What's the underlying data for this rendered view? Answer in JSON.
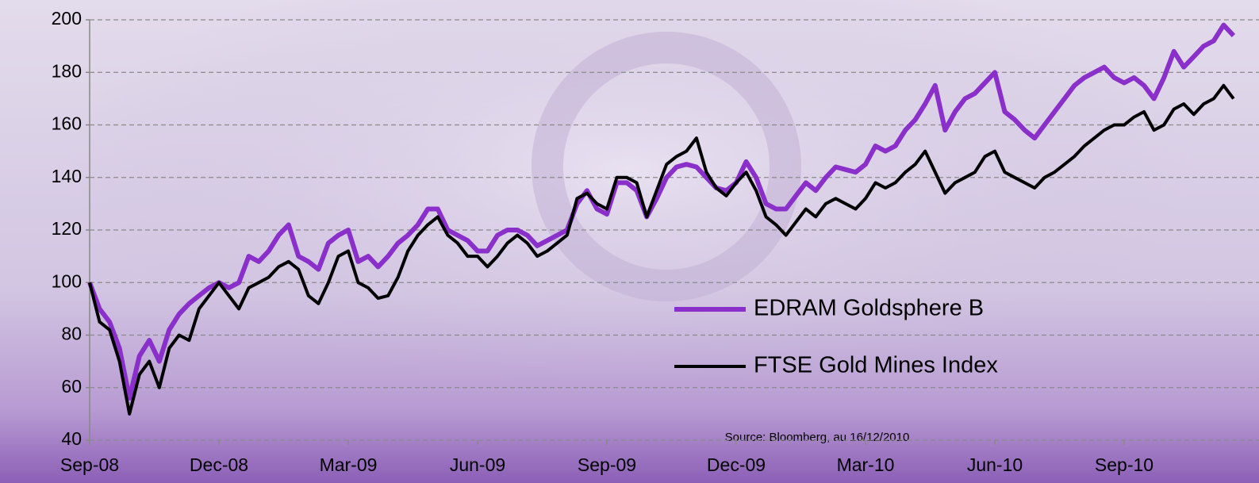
{
  "chart_data": {
    "type": "line",
    "annotation": "Source: Bloomberg, au 16/12/2010",
    "categories": [
      "Sep-08",
      null,
      null,
      null,
      null,
      null,
      null,
      null,
      null,
      null,
      null,
      null,
      null,
      "Dec-08",
      null,
      null,
      null,
      null,
      null,
      null,
      null,
      null,
      null,
      null,
      null,
      null,
      "Mar-09",
      null,
      null,
      null,
      null,
      null,
      null,
      null,
      null,
      null,
      null,
      null,
      null,
      "Jun-09",
      null,
      null,
      null,
      null,
      null,
      null,
      null,
      null,
      null,
      null,
      null,
      null,
      "Sep-09",
      null,
      null,
      null,
      null,
      null,
      null,
      null,
      null,
      null,
      null,
      null,
      null,
      "Dec-09",
      null,
      null,
      null,
      null,
      null,
      null,
      null,
      null,
      null,
      null,
      null,
      null,
      "Mar-10",
      null,
      null,
      null,
      null,
      null,
      null,
      null,
      null,
      null,
      null,
      null,
      null,
      "Jun-10",
      null,
      null,
      null,
      null,
      null,
      null,
      null,
      null,
      null,
      null,
      null,
      null,
      "Sep-10",
      null,
      null,
      null,
      null,
      null,
      null,
      null,
      null,
      null,
      null,
      null
    ],
    "series": [
      {
        "name": "EDRAM Goldsphere B",
        "color": "#8a2fc9",
        "values": [
          100,
          90,
          85,
          75,
          56,
          72,
          78,
          70,
          82,
          88,
          92,
          95,
          98,
          100,
          98,
          100,
          110,
          108,
          112,
          118,
          122,
          110,
          108,
          105,
          115,
          118,
          120,
          108,
          110,
          106,
          110,
          115,
          118,
          122,
          128,
          128,
          120,
          118,
          116,
          112,
          112,
          118,
          120,
          120,
          118,
          114,
          116,
          118,
          120,
          130,
          135,
          128,
          126,
          138,
          138,
          135,
          125,
          132,
          140,
          144,
          145,
          144,
          140,
          136,
          135,
          138,
          146,
          140,
          130,
          128,
          128,
          133,
          138,
          135,
          140,
          144,
          143,
          142,
          145,
          152,
          150,
          152,
          158,
          162,
          168,
          175,
          158,
          165,
          170,
          172,
          176,
          180,
          165,
          162,
          158,
          155,
          160,
          165,
          170,
          175,
          178,
          180,
          182,
          178,
          176,
          178,
          175,
          170,
          178,
          188,
          182,
          186,
          190,
          192,
          198,
          194
        ]
      },
      {
        "name": "FTSE Gold Mines Index",
        "color": "#000000",
        "values": [
          100,
          85,
          82,
          70,
          50,
          65,
          70,
          60,
          75,
          80,
          78,
          90,
          95,
          100,
          95,
          90,
          98,
          100,
          102,
          106,
          108,
          105,
          95,
          92,
          100,
          110,
          112,
          100,
          98,
          94,
          95,
          102,
          112,
          118,
          122,
          125,
          118,
          115,
          110,
          110,
          106,
          110,
          115,
          118,
          115,
          110,
          112,
          115,
          118,
          132,
          134,
          130,
          128,
          140,
          140,
          138,
          125,
          135,
          145,
          148,
          150,
          155,
          142,
          136,
          133,
          138,
          142,
          135,
          125,
          122,
          118,
          123,
          128,
          125,
          130,
          132,
          130,
          128,
          132,
          138,
          136,
          138,
          142,
          145,
          150,
          142,
          134,
          138,
          140,
          142,
          148,
          150,
          142,
          140,
          138,
          136,
          140,
          142,
          145,
          148,
          152,
          155,
          158,
          160,
          160,
          163,
          165,
          158,
          160,
          166,
          168,
          164,
          168,
          170,
          175,
          170
        ]
      }
    ],
    "ylim": [
      40,
      200
    ],
    "yticks": [
      40,
      60,
      80,
      100,
      120,
      140,
      160,
      180,
      200
    ],
    "grid": true
  }
}
